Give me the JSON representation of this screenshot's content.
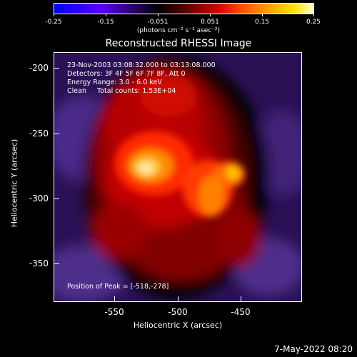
{
  "colorbar": {
    "ticks": [
      "-0.25",
      "-0.15",
      "-0.051",
      "0.051",
      "0.15",
      "0.25"
    ],
    "units": "(photons cm⁻² s⁻¹ asec⁻²)"
  },
  "plot": {
    "title": "Reconstructed RHESSI Image",
    "annotation": {
      "line1": "23-Nov-2003 03:08:32.000 to 03:13:08.000",
      "line2": "Detectors: 3F 4F 5F 6F 7F 8F, Att 0",
      "line3": "Energy Range: 3.0 - 6.0 keV",
      "line4": "Clean     Total counts: 1.53E+04"
    },
    "peak": "Position of Peak = [-518,-278]",
    "xlabel": "Heliocentric X (arcsec)",
    "ylabel": "Heliocentric Y (arcsec)",
    "xticks": [
      "-550",
      "-500",
      "-450"
    ],
    "yticks": [
      "-200",
      "-250",
      "-300",
      "-350"
    ]
  },
  "footer": "7-May-2022 08:20",
  "colors": {
    "background": "#000000",
    "negative_halo": "#3b1a6e",
    "peak": "#ffe9a0"
  }
}
